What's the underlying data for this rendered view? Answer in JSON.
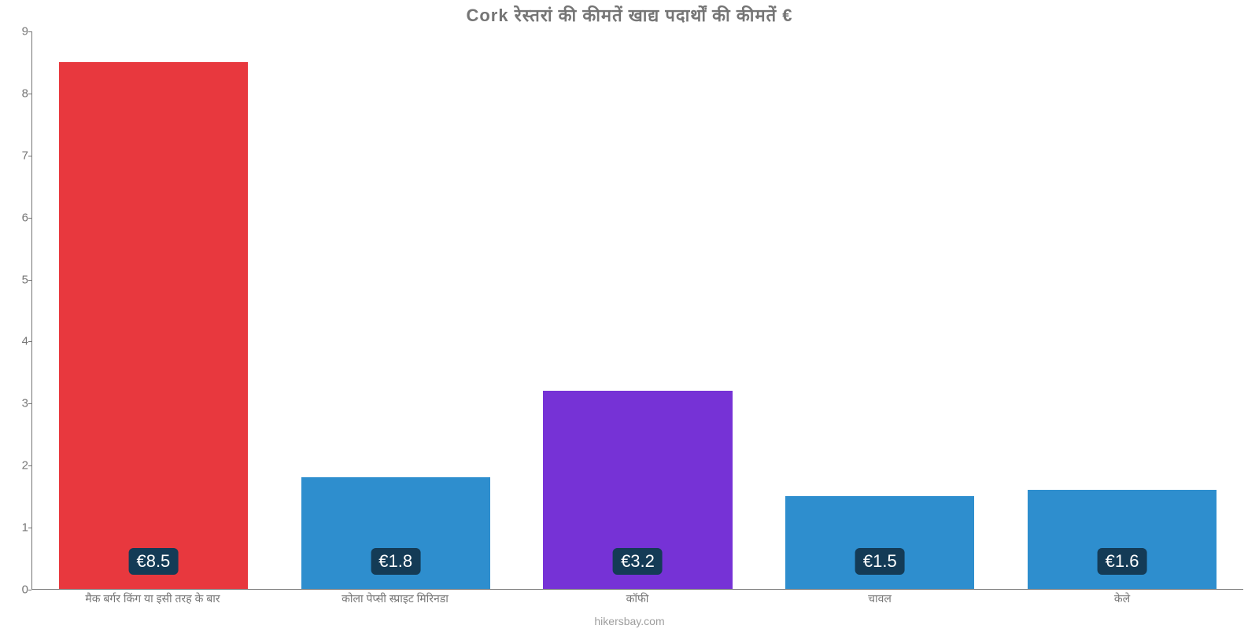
{
  "chart": {
    "type": "bar",
    "title": "Cork रेस्तरां    की    कीमतें    खाद्य    पदार्थों    की    कीमतें    €",
    "title_color": "#757575",
    "title_fontsize": 22,
    "background_color": "#ffffff",
    "axis_color": "#757575",
    "tick_color": "#757575",
    "tick_fontsize": 15,
    "xlabel_fontsize": 14,
    "ylim": [
      0,
      9
    ],
    "yticks": [
      0,
      1,
      2,
      3,
      4,
      5,
      6,
      7,
      8,
      9
    ],
    "bar_width_pct": 78,
    "value_label_bg": "#143b56",
    "value_label_text_color": "#ffffff",
    "value_label_fontsize": 22,
    "value_label_radius": 6,
    "categories": [
      "मैक बर्गर किंग या इसी तरह के बार",
      "कोला पेप्सी स्प्राइट मिरिनडा",
      "कॉफी",
      "चावल",
      "केले"
    ],
    "values": [
      8.5,
      1.8,
      3.2,
      1.5,
      1.6
    ],
    "value_labels": [
      "€8.5",
      "€1.8",
      "€3.2",
      "€1.5",
      "€1.6"
    ],
    "bar_colors": [
      "#e8383e",
      "#2e8ece",
      "#7632d6",
      "#2e8ece",
      "#2e8ece"
    ],
    "source_text": "hikersbay.com",
    "source_color": "#9e9e9e",
    "source_fontsize": 14
  }
}
